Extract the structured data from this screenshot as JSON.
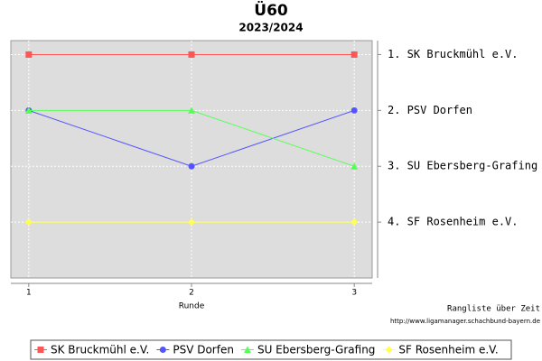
{
  "chart_data": {
    "type": "line",
    "title": "Ü60",
    "subtitle": "2023/2024",
    "x_label": "Runde",
    "y_label": "Rangliste über Zeit",
    "source": "http://www.ligamanager.schachbund-bayern.de",
    "x": [
      1,
      2,
      3
    ],
    "xlim": [
      0.89,
      3.11
    ],
    "xticks": [
      1,
      2,
      3
    ],
    "ylim": [
      5,
      0.75
    ],
    "yticks": [
      {
        "value": 1,
        "label": "1. SK Bruckmühl e.V."
      },
      {
        "value": 2,
        "label": "2. PSV Dorfen"
      },
      {
        "value": 3,
        "label": "3. SU Ebersberg-Grafing"
      },
      {
        "value": 4,
        "label": "4. SF Rosenheim e.V."
      }
    ],
    "grid": true,
    "legend": "bottom",
    "series": [
      {
        "name": "SK Bruckmühl e.V.",
        "color": "#ff5555",
        "marker": "square",
        "values": [
          1,
          1,
          1
        ]
      },
      {
        "name": "PSV Dorfen",
        "color": "#5555ff",
        "marker": "circle",
        "values": [
          2,
          3,
          2
        ]
      },
      {
        "name": "SU Ebersberg-Grafing",
        "color": "#55ff55",
        "marker": "triangle",
        "values": [
          2,
          2,
          3
        ]
      },
      {
        "name": "SF Rosenheim e.V.",
        "color": "#ffff55",
        "marker": "diamond",
        "values": [
          4,
          4,
          4
        ]
      }
    ]
  }
}
